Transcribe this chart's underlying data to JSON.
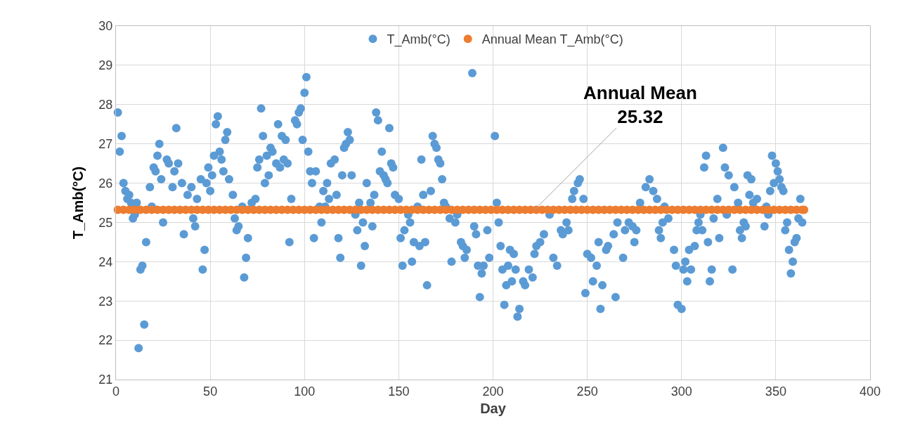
{
  "chart_data": {
    "type": "scatter",
    "xlabel": "Day",
    "ylabel": "T_Amb(°C)",
    "xlim": [
      0,
      400
    ],
    "xticks": [
      0,
      50,
      100,
      150,
      200,
      250,
      300,
      350,
      400
    ],
    "ylim": [
      21,
      30
    ],
    "yticks": [
      21,
      22,
      23,
      24,
      25,
      26,
      27,
      28,
      29,
      30
    ],
    "grid": true,
    "legend": "top",
    "marker": "circle",
    "annotations": [
      {
        "text": "Annual Mean\n25.32",
        "x": 222,
        "y": 25.32
      }
    ],
    "series": [
      {
        "name": "T_Amb(°C)",
        "color": "#5b9bd5",
        "x": [
          1,
          2,
          3,
          4,
          5,
          6,
          7,
          8,
          9,
          10,
          11,
          12,
          13,
          14,
          15,
          16,
          18,
          19,
          20,
          21,
          22,
          23,
          24,
          25,
          27,
          28,
          30,
          31,
          32,
          33,
          35,
          36,
          38,
          40,
          41,
          42,
          43,
          45,
          46,
          47,
          48,
          49,
          50,
          51,
          52,
          53,
          54,
          55,
          56,
          57,
          58,
          59,
          60,
          62,
          63,
          64,
          65,
          67,
          68,
          69,
          70,
          72,
          74,
          75,
          76,
          77,
          78,
          79,
          80,
          81,
          82,
          83,
          85,
          86,
          87,
          88,
          89,
          90,
          91,
          92,
          93,
          95,
          96,
          97,
          98,
          99,
          100,
          101,
          102,
          103,
          104,
          105,
          106,
          108,
          109,
          110,
          111,
          112,
          113,
          114,
          116,
          117,
          118,
          119,
          120,
          121,
          122,
          123,
          124,
          125,
          127,
          128,
          129,
          130,
          131,
          132,
          133,
          135,
          136,
          137,
          138,
          139,
          140,
          141,
          142,
          143,
          144,
          145,
          146,
          147,
          148,
          150,
          151,
          152,
          153,
          155,
          156,
          157,
          158,
          160,
          161,
          162,
          163,
          164,
          165,
          167,
          168,
          169,
          170,
          171,
          172,
          173,
          174,
          175,
          177,
          178,
          180,
          181,
          183,
          184,
          185,
          186,
          189,
          190,
          191,
          192,
          193,
          194,
          195,
          197,
          198,
          201,
          202,
          203,
          204,
          205,
          206,
          207,
          208,
          209,
          210,
          211,
          212,
          213,
          214,
          216,
          217,
          219,
          221,
          222,
          223,
          225,
          227,
          230,
          232,
          234,
          236,
          237,
          239,
          240,
          242,
          243,
          245,
          246,
          248,
          249,
          250,
          252,
          253,
          255,
          256,
          257,
          258,
          260,
          261,
          264,
          265,
          266,
          269,
          270,
          272,
          274,
          275,
          276,
          278,
          281,
          283,
          285,
          287,
          288,
          289,
          290,
          291,
          293,
          296,
          297,
          298,
          300,
          301,
          302,
          303,
          304,
          305,
          307,
          308,
          309,
          310,
          311,
          312,
          313,
          314,
          315,
          316,
          317,
          319,
          320,
          322,
          323,
          324,
          325,
          327,
          328,
          330,
          331,
          332,
          333,
          334,
          335,
          336,
          337,
          338,
          340,
          344,
          345,
          346,
          347,
          348,
          349,
          350,
          351,
          352,
          353,
          354,
          355,
          356,
          357,
          358,
          359,
          360,
          361,
          362,
          363,
          364
        ],
        "values": [
          27.8,
          26.8,
          27.2,
          26.0,
          25.8,
          25.6,
          25.7,
          25.5,
          25.1,
          25.2,
          25.5,
          21.8,
          23.8,
          23.9,
          22.4,
          24.5,
          25.9,
          25.4,
          26.4,
          26.3,
          26.7,
          27.0,
          26.1,
          25.0,
          26.6,
          26.5,
          25.9,
          26.3,
          27.4,
          26.5,
          26.0,
          24.7,
          25.7,
          25.9,
          25.1,
          24.9,
          25.6,
          26.1,
          23.8,
          24.3,
          26.0,
          26.4,
          25.8,
          26.2,
          26.7,
          27.5,
          27.7,
          26.8,
          26.6,
          26.3,
          27.1,
          27.3,
          26.1,
          25.7,
          25.1,
          24.8,
          24.9,
          25.4,
          23.6,
          24.1,
          24.6,
          25.5,
          25.6,
          26.4,
          26.6,
          27.9,
          27.2,
          26.0,
          26.7,
          26.2,
          26.9,
          26.8,
          26.5,
          27.5,
          26.4,
          27.2,
          26.6,
          27.1,
          26.5,
          24.5,
          25.6,
          27.6,
          27.5,
          27.8,
          27.9,
          27.1,
          28.3,
          28.7,
          26.8,
          26.3,
          26.0,
          24.6,
          26.3,
          25.4,
          25.0,
          25.8,
          25.4,
          26.0,
          25.6,
          26.5,
          26.6,
          25.7,
          24.6,
          24.1,
          26.2,
          26.9,
          27.0,
          27.3,
          27.1,
          26.2,
          25.2,
          24.8,
          25.5,
          23.9,
          25.0,
          24.4,
          26.0,
          25.5,
          24.9,
          25.7,
          27.8,
          27.6,
          26.3,
          26.8,
          26.2,
          26.1,
          26.0,
          27.4,
          26.5,
          26.4,
          25.7,
          25.6,
          24.6,
          23.9,
          24.8,
          25.2,
          25.0,
          24.0,
          24.5,
          25.4,
          24.4,
          26.6,
          25.7,
          24.5,
          23.4,
          25.8,
          27.2,
          27.0,
          26.9,
          26.6,
          26.5,
          26.1,
          25.5,
          25.4,
          25.1,
          24.0,
          25.0,
          25.2,
          24.5,
          24.4,
          24.1,
          24.3,
          28.8,
          24.9,
          24.7,
          23.9,
          23.1,
          23.7,
          23.9,
          24.8,
          24.1,
          27.2,
          25.5,
          25.0,
          24.4,
          23.8,
          22.9,
          23.4,
          23.9,
          24.3,
          23.5,
          24.2,
          23.8,
          22.6,
          22.8,
          23.5,
          23.4,
          23.8,
          23.6,
          24.2,
          24.4,
          24.5,
          24.7,
          25.2,
          24.1,
          23.9,
          24.8,
          24.7,
          25.0,
          24.8,
          25.6,
          25.8,
          26.0,
          26.1,
          25.6,
          23.2,
          24.2,
          24.1,
          23.5,
          23.9,
          24.5,
          22.8,
          23.4,
          24.3,
          24.4,
          24.7,
          23.1,
          25.0,
          24.1,
          24.8,
          25.0,
          24.9,
          24.5,
          24.8,
          25.5,
          25.9,
          26.1,
          25.8,
          25.6,
          24.8,
          24.6,
          25.0,
          25.4,
          25.1,
          24.3,
          23.9,
          22.9,
          22.8,
          23.8,
          24.0,
          23.5,
          24.3,
          23.8,
          24.4,
          24.8,
          25.0,
          25.2,
          24.8,
          26.4,
          26.7,
          24.5,
          23.5,
          23.8,
          25.1,
          25.6,
          24.6,
          26.9,
          26.4,
          25.2,
          26.2,
          23.8,
          25.9,
          25.5,
          24.8,
          24.6,
          25.0,
          24.9,
          26.2,
          25.7,
          26.1,
          25.5,
          25.6,
          24.9,
          25.4,
          25.2,
          25.8,
          26.7,
          26.0,
          26.5,
          26.3,
          26.1,
          25.9,
          25.8,
          24.8,
          25.0,
          24.3,
          23.7,
          24.0,
          24.5,
          24.6,
          25.1,
          25.6,
          25.0
        ]
      },
      {
        "name": "Annual Mean T_Amb(°C)",
        "color": "#ed7d31",
        "x": [
          1,
          4,
          7,
          10,
          13,
          16,
          19,
          22,
          25,
          28,
          31,
          34,
          37,
          40,
          43,
          46,
          49,
          52,
          55,
          58,
          61,
          64,
          67,
          70,
          73,
          76,
          79,
          82,
          85,
          88,
          91,
          94,
          97,
          100,
          103,
          106,
          109,
          112,
          115,
          118,
          121,
          124,
          127,
          130,
          133,
          136,
          139,
          142,
          145,
          148,
          151,
          154,
          157,
          160,
          163,
          166,
          169,
          172,
          175,
          178,
          181,
          184,
          187,
          190,
          193,
          196,
          199,
          202,
          205,
          208,
          211,
          214,
          217,
          220,
          223,
          226,
          229,
          232,
          235,
          238,
          241,
          244,
          247,
          250,
          253,
          256,
          259,
          262,
          265,
          268,
          271,
          274,
          277,
          280,
          283,
          286,
          289,
          292,
          295,
          298,
          301,
          304,
          307,
          310,
          313,
          316,
          319,
          322,
          325,
          328,
          331,
          334,
          337,
          340,
          343,
          346,
          349,
          352,
          355,
          358,
          361,
          364,
          365
        ],
        "values": [
          25.32,
          25.32,
          25.32,
          25.32,
          25.32,
          25.32,
          25.32,
          25.32,
          25.32,
          25.32,
          25.32,
          25.32,
          25.32,
          25.32,
          25.32,
          25.32,
          25.32,
          25.32,
          25.32,
          25.32,
          25.32,
          25.32,
          25.32,
          25.32,
          25.32,
          25.32,
          25.32,
          25.32,
          25.32,
          25.32,
          25.32,
          25.32,
          25.32,
          25.32,
          25.32,
          25.32,
          25.32,
          25.32,
          25.32,
          25.32,
          25.32,
          25.32,
          25.32,
          25.32,
          25.32,
          25.32,
          25.32,
          25.32,
          25.32,
          25.32,
          25.32,
          25.32,
          25.32,
          25.32,
          25.32,
          25.32,
          25.32,
          25.32,
          25.32,
          25.32,
          25.32,
          25.32,
          25.32,
          25.32,
          25.32,
          25.32,
          25.32,
          25.32,
          25.32,
          25.32,
          25.32,
          25.32,
          25.32,
          25.32,
          25.32,
          25.32,
          25.32,
          25.32,
          25.32,
          25.32,
          25.32,
          25.32,
          25.32,
          25.32,
          25.32,
          25.32,
          25.32,
          25.32,
          25.32,
          25.32,
          25.32,
          25.32,
          25.32,
          25.32,
          25.32,
          25.32,
          25.32,
          25.32,
          25.32,
          25.32,
          25.32,
          25.32,
          25.32,
          25.32,
          25.32,
          25.32,
          25.32,
          25.32,
          25.32,
          25.32,
          25.32,
          25.32,
          25.32,
          25.32,
          25.32,
          25.32,
          25.32,
          25.32,
          25.32,
          25.32,
          25.32,
          25.32,
          25.32
        ]
      }
    ]
  }
}
